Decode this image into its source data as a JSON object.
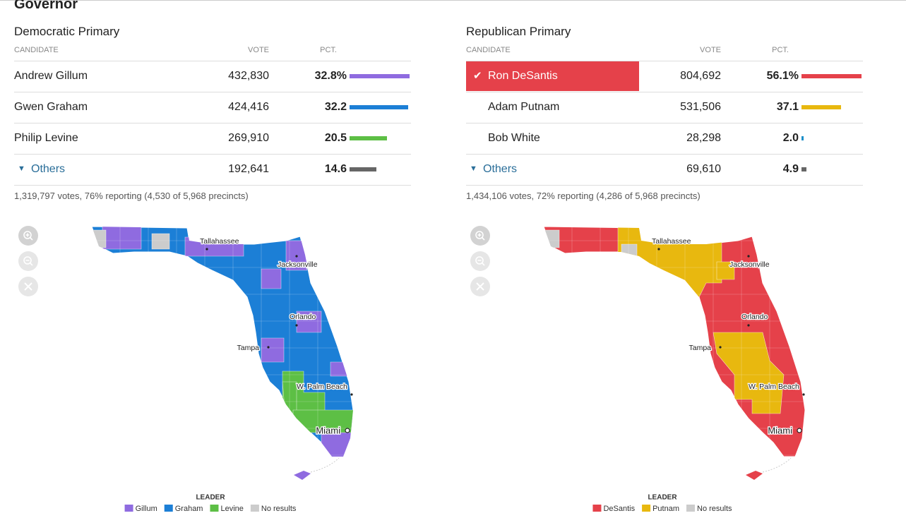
{
  "title": "Governor",
  "primaries": [
    {
      "heading": "Democratic Primary",
      "columns": [
        "CANDIDATE",
        "VOTE",
        "PCT."
      ],
      "rows": [
        {
          "name": "Andrew Gillum",
          "vote": "432,830",
          "pct": 32.8,
          "pct_label": "32.8%",
          "color": "#8f6be0"
        },
        {
          "name": "Gwen Graham",
          "vote": "424,416",
          "pct": 32.2,
          "color": "#1c7fd6"
        },
        {
          "name": "Philip Levine",
          "vote": "269,910",
          "pct": 20.5,
          "color": "#5dbf45"
        },
        {
          "name": "Others",
          "vote": "192,641",
          "pct": 14.6,
          "color": "#666666",
          "expandable": true
        }
      ],
      "summary": "1,319,797 votes, 76% reporting (4,530 of 5,968 precincts)",
      "map": {
        "cities": [
          "Tallahassee",
          "Jacksonville",
          "Orlando",
          "Tampa",
          "W. Palm Beach",
          "Miami"
        ]
      },
      "legend": {
        "title": "LEADER",
        "items": [
          {
            "name": "Gillum",
            "color": "#8f6be0"
          },
          {
            "name": "Graham",
            "color": "#1c7fd6"
          },
          {
            "name": "Levine",
            "color": "#5dbf45"
          },
          {
            "name": "No results",
            "color": "#cccccc"
          }
        ]
      }
    },
    {
      "heading": "Republican Primary",
      "columns": [
        "CANDIDATE",
        "VOTE",
        "PCT."
      ],
      "rows": [
        {
          "name": "Ron DeSantis",
          "vote": "804,692",
          "pct": 56.1,
          "pct_label": "56.1%",
          "color": "#e5414a",
          "winner": true
        },
        {
          "name": "Adam Putnam",
          "vote": "531,506",
          "pct": 37.1,
          "color": "#e8b80f"
        },
        {
          "name": "Bob White",
          "vote": "28,298",
          "pct": 2.0,
          "pct_label": "2.0",
          "color": "#1c8fc9"
        },
        {
          "name": "Others",
          "vote": "69,610",
          "pct": 4.9,
          "color": "#666666",
          "expandable": true
        }
      ],
      "summary": "1,434,106 votes, 72% reporting (4,286 of 5,968 precincts)",
      "map": {
        "cities": [
          "Tallahassee",
          "Jacksonville",
          "Orlando",
          "Tampa",
          "W. Palm Beach",
          "Miami"
        ]
      },
      "legend": {
        "title": "LEADER",
        "items": [
          {
            "name": "DeSantis",
            "color": "#e5414a"
          },
          {
            "name": "Putnam",
            "color": "#e8b80f"
          },
          {
            "name": "No results",
            "color": "#cccccc"
          }
        ]
      }
    }
  ]
}
